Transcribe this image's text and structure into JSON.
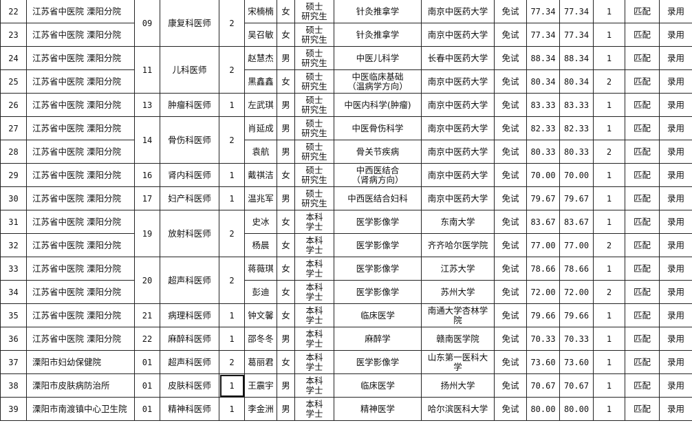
{
  "groups": [
    {
      "code": "09",
      "position": "康复科医师",
      "count": "2",
      "rows": [
        {
          "index": "22",
          "unit": "江苏省中医院  溧阳分院",
          "name": "宋楠楠",
          "gender": "女",
          "edu": "硕士\n研究生",
          "major": "针灸推拿学",
          "school": "南京中医药大学",
          "exam": "免试",
          "score1": "77.34",
          "score2": "77.34",
          "rank": "1",
          "match": "匹配",
          "result": "录用"
        },
        {
          "index": "23",
          "unit": "江苏省中医院  溧阳分院",
          "name": "吴召敏",
          "gender": "女",
          "edu": "硕士\n研究生",
          "major": "针灸推拿学",
          "school": "南京中医药大学",
          "exam": "免试",
          "score1": "77.34",
          "score2": "77.34",
          "rank": "1",
          "match": "匹配",
          "result": "录用"
        }
      ]
    },
    {
      "code": "11",
      "position": "儿科医师",
      "count": "2",
      "rows": [
        {
          "index": "24",
          "unit": "江苏省中医院  溧阳分院",
          "name": "赵慧杰",
          "gender": "男",
          "edu": "硕士\n研究生",
          "major": "中医儿科学",
          "school": "长春中医药大学",
          "exam": "免试",
          "score1": "88.34",
          "score2": "88.34",
          "rank": "1",
          "match": "匹配",
          "result": "录用"
        },
        {
          "index": "25",
          "unit": "江苏省中医院  溧阳分院",
          "name": "黑鑫鑫",
          "gender": "女",
          "edu": "硕士\n研究生",
          "major": "中医临床基础\n（温病学方向）",
          "school": "南京中医药大学",
          "exam": "免试",
          "score1": "80.34",
          "score2": "80.34",
          "rank": "2",
          "match": "匹配",
          "result": "录用"
        }
      ]
    },
    {
      "code": "13",
      "position": "肿瘤科医师",
      "count": "1",
      "rows": [
        {
          "index": "26",
          "unit": "江苏省中医院  溧阳分院",
          "name": "左武琪",
          "gender": "男",
          "edu": "硕士\n研究生",
          "major": "中医内科学(肿瘤)",
          "school": "南京中医药大学",
          "exam": "免试",
          "score1": "83.33",
          "score2": "83.33",
          "rank": "1",
          "match": "匹配",
          "result": "录用"
        }
      ]
    },
    {
      "code": "14",
      "position": "骨伤科医师",
      "count": "2",
      "rows": [
        {
          "index": "27",
          "unit": "江苏省中医院  溧阳分院",
          "name": "肖延成",
          "gender": "男",
          "edu": "硕士\n研究生",
          "major": "中医骨伤科学",
          "school": "南京中医药大学",
          "exam": "免试",
          "score1": "82.33",
          "score2": "82.33",
          "rank": "1",
          "match": "匹配",
          "result": "录用"
        },
        {
          "index": "28",
          "unit": "江苏省中医院  溧阳分院",
          "name": "袁航",
          "gender": "男",
          "edu": "硕士\n研究生",
          "major": "骨关节疾病",
          "school": "南京中医药大学",
          "exam": "免试",
          "score1": "80.33",
          "score2": "80.33",
          "rank": "2",
          "match": "匹配",
          "result": "录用"
        }
      ]
    },
    {
      "code": "16",
      "position": "肾内科医师",
      "count": "1",
      "rows": [
        {
          "index": "29",
          "unit": "江苏省中医院  溧阳分院",
          "name": "戴祺洁",
          "gender": "女",
          "edu": "硕士\n研究生",
          "major": "中西医结合\n（肾病方向）",
          "school": "南京中医药大学",
          "exam": "免试",
          "score1": "70.00",
          "score2": "70.00",
          "rank": "1",
          "match": "匹配",
          "result": "录用"
        }
      ]
    },
    {
      "code": "17",
      "position": "妇产科医师",
      "count": "1",
      "rows": [
        {
          "index": "30",
          "unit": "江苏省中医院  溧阳分院",
          "name": "温兆军",
          "gender": "男",
          "edu": "硕士\n研究生",
          "major": "中西医结合妇科",
          "school": "南京中医药大学",
          "exam": "免试",
          "score1": "79.67",
          "score2": "79.67",
          "rank": "1",
          "match": "匹配",
          "result": "录用"
        }
      ]
    },
    {
      "code": "19",
      "position": "放射科医师",
      "count": "2",
      "rows": [
        {
          "index": "31",
          "unit": "江苏省中医院  溧阳分院",
          "name": "史冰",
          "gender": "女",
          "edu": "本科\n学士",
          "major": "医学影像学",
          "school": "东南大学",
          "exam": "免试",
          "score1": "83.67",
          "score2": "83.67",
          "rank": "1",
          "match": "匹配",
          "result": "录用"
        },
        {
          "index": "32",
          "unit": "江苏省中医院  溧阳分院",
          "name": "杨晨",
          "gender": "女",
          "edu": "本科\n学士",
          "major": "医学影像学",
          "school": "齐齐哈尔医学院",
          "exam": "免试",
          "score1": "77.00",
          "score2": "77.00",
          "rank": "2",
          "match": "匹配",
          "result": "录用"
        }
      ]
    },
    {
      "code": "20",
      "position": "超声科医师",
      "count": "2",
      "rows": [
        {
          "index": "33",
          "unit": "江苏省中医院  溧阳分院",
          "name": "蒋薇琪",
          "gender": "女",
          "edu": "本科\n学士",
          "major": "医学影像学",
          "school": "江苏大学",
          "exam": "免试",
          "score1": "78.66",
          "score2": "78.66",
          "rank": "1",
          "match": "匹配",
          "result": "录用"
        },
        {
          "index": "34",
          "unit": "江苏省中医院  溧阳分院",
          "name": "彭迪",
          "gender": "女",
          "edu": "本科\n学士",
          "major": "医学影像学",
          "school": "苏州大学",
          "exam": "免试",
          "score1": "72.00",
          "score2": "72.00",
          "rank": "2",
          "match": "匹配",
          "result": "录用"
        }
      ]
    },
    {
      "code": "21",
      "position": "病理科医师",
      "count": "1",
      "rows": [
        {
          "index": "35",
          "unit": "江苏省中医院  溧阳分院",
          "name": "钟文馨",
          "gender": "女",
          "edu": "本科\n学士",
          "major": "临床医学",
          "school": "南通大学杏林学\n院",
          "exam": "免试",
          "score1": "79.66",
          "score2": "79.66",
          "rank": "1",
          "match": "匹配",
          "result": "录用"
        }
      ]
    },
    {
      "code": "22",
      "position": "麻醉科医师",
      "count": "1",
      "rows": [
        {
          "index": "36",
          "unit": "江苏省中医院  溧阳分院",
          "name": "邵冬冬",
          "gender": "男",
          "edu": "本科\n学士",
          "major": "麻醉学",
          "school": "赣南医学院",
          "exam": "免试",
          "score1": "70.33",
          "score2": "70.33",
          "rank": "1",
          "match": "匹配",
          "result": "录用"
        }
      ]
    },
    {
      "code": "01",
      "position": "超声科医师",
      "count": "2",
      "rows": [
        {
          "index": "37",
          "unit": "溧阳市妇幼保健院",
          "name": "葛丽君",
          "gender": "女",
          "edu": "本科\n学士",
          "major": "医学影像学",
          "school": "山东第一医科大\n学",
          "exam": "免试",
          "score1": "73.60",
          "score2": "73.60",
          "rank": "1",
          "match": "匹配",
          "result": "录用"
        }
      ]
    },
    {
      "code": "01",
      "position": "皮肤科医师",
      "count": "1",
      "selected": true,
      "rows": [
        {
          "index": "38",
          "unit": "溧阳市皮肤病防治所",
          "name": "王震宇",
          "gender": "男",
          "edu": "本科\n学士",
          "major": "临床医学",
          "school": "扬州大学",
          "exam": "免试",
          "score1": "70.67",
          "score2": "70.67",
          "rank": "1",
          "match": "匹配",
          "result": "录用"
        }
      ]
    },
    {
      "code": "01",
      "position": "精神科医师",
      "count": "1",
      "rows": [
        {
          "index": "39",
          "unit": "溧阳市南渡镇中心卫生院",
          "name": "李金洲",
          "gender": "男",
          "edu": "本科\n学士",
          "major": "精神医学",
          "school": "哈尔滨医科大学",
          "exam": "免试",
          "score1": "80.00",
          "score2": "80.00",
          "rank": "1",
          "match": "匹配",
          "result": "录用"
        }
      ]
    }
  ]
}
